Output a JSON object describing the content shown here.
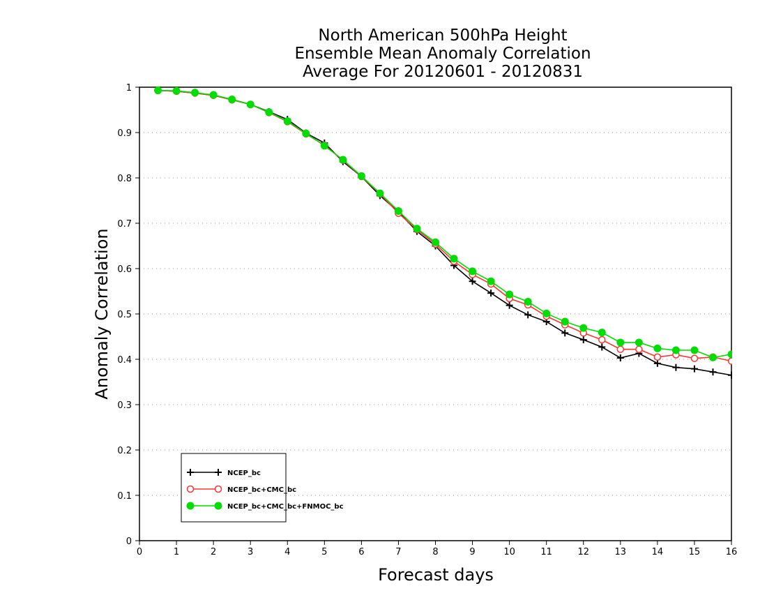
{
  "chart_data": {
    "type": "line",
    "title_lines": [
      "North American 500hPa Height",
      "Ensemble Mean Anomaly Correlation",
      "Average For 20120601 - 20120831"
    ],
    "xlabel": "Forecast days",
    "ylabel": "Anomaly Correlation",
    "xlim": [
      0,
      16
    ],
    "ylim": [
      0,
      1
    ],
    "xticks": [
      "0",
      "1",
      "2",
      "3",
      "4",
      "5",
      "6",
      "7",
      "8",
      "9",
      "10",
      "11",
      "12",
      "13",
      "14",
      "15",
      "16"
    ],
    "yticks": [
      "0",
      "0.1",
      "0.2",
      "0.3",
      "0.4",
      "0.5",
      "0.6",
      "0.7",
      "0.8",
      "0.9",
      "1"
    ],
    "grid": "horizontal dotted",
    "legend_position": "bottom-left",
    "x": [
      0.5,
      1,
      1.5,
      2,
      2.5,
      3,
      3.5,
      4,
      4.5,
      5,
      5.5,
      6,
      6.5,
      7,
      7.5,
      8,
      8.5,
      9,
      9.5,
      10,
      10.5,
      11,
      11.5,
      12,
      12.5,
      13,
      13.5,
      14,
      14.5,
      15,
      15.5,
      16
    ],
    "series": [
      {
        "name": "NCEP_bc",
        "color": "#000000",
        "marker": "plus",
        "values": [
          0.993,
          0.991,
          0.987,
          0.982,
          0.973,
          0.962,
          0.946,
          0.929,
          0.899,
          0.877,
          0.836,
          0.803,
          0.761,
          0.725,
          0.682,
          0.65,
          0.607,
          0.572,
          0.546,
          0.519,
          0.498,
          0.483,
          0.458,
          0.443,
          0.427,
          0.403,
          0.413,
          0.391,
          0.382,
          0.379,
          0.372,
          0.365
        ]
      },
      {
        "name": "NCEP_bc+CMC_bc",
        "color": "#ff3333",
        "marker": "open-circle",
        "values": [
          0.993,
          0.991,
          0.987,
          0.982,
          0.972,
          0.962,
          0.944,
          0.924,
          0.897,
          0.872,
          0.839,
          0.803,
          0.765,
          0.722,
          0.686,
          0.654,
          0.616,
          0.587,
          0.566,
          0.534,
          0.52,
          0.495,
          0.476,
          0.458,
          0.443,
          0.422,
          0.422,
          0.405,
          0.41,
          0.402,
          0.405,
          0.396
        ]
      },
      {
        "name": "NCEP_bc+CMC_bc+FNMOC_bc",
        "color": "#00dd00",
        "marker": "filled-circle",
        "values": [
          0.993,
          0.992,
          0.988,
          0.983,
          0.973,
          0.962,
          0.945,
          0.925,
          0.898,
          0.871,
          0.84,
          0.804,
          0.766,
          0.727,
          0.688,
          0.658,
          0.622,
          0.594,
          0.572,
          0.543,
          0.527,
          0.501,
          0.483,
          0.469,
          0.459,
          0.437,
          0.437,
          0.424,
          0.42,
          0.42,
          0.404,
          0.411
        ]
      }
    ]
  }
}
